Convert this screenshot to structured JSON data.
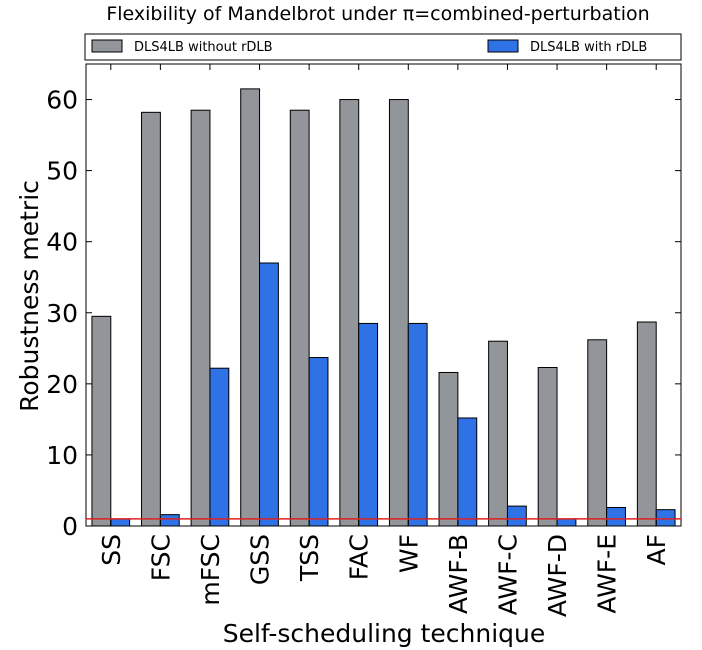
{
  "chart_data": {
    "type": "bar",
    "title": "Flexibility of Mandelbrot under π=combined-perturbation",
    "xlabel": "Self-scheduling technique",
    "ylabel": "Robustness metric",
    "categories": [
      "SS",
      "FSC",
      "mFSC",
      "GSS",
      "TSS",
      "FAC",
      "WF",
      "AWF-B",
      "AWF-C",
      "AWF-D",
      "AWF-E",
      "AF"
    ],
    "series": [
      {
        "name": "DLS4LB without rDLB",
        "color": "#929599",
        "values": [
          29.5,
          58.2,
          58.5,
          61.5,
          58.5,
          60.0,
          60.0,
          21.6,
          26.0,
          22.3,
          26.2,
          28.7
        ]
      },
      {
        "name": "DLS4LB with rDLB",
        "color": "#2f72e6",
        "values": [
          1.0,
          1.6,
          22.2,
          37.0,
          23.7,
          28.5,
          28.5,
          15.2,
          2.8,
          1.0,
          2.6,
          2.3
        ]
      }
    ],
    "reference_line": {
      "value": 1,
      "color": "#e02020"
    },
    "ylim": [
      0,
      65
    ],
    "yticks": [
      "0",
      "10",
      "20",
      "30",
      "40",
      "50",
      "60"
    ],
    "legend_position": "top (above plot)",
    "grid": false
  }
}
